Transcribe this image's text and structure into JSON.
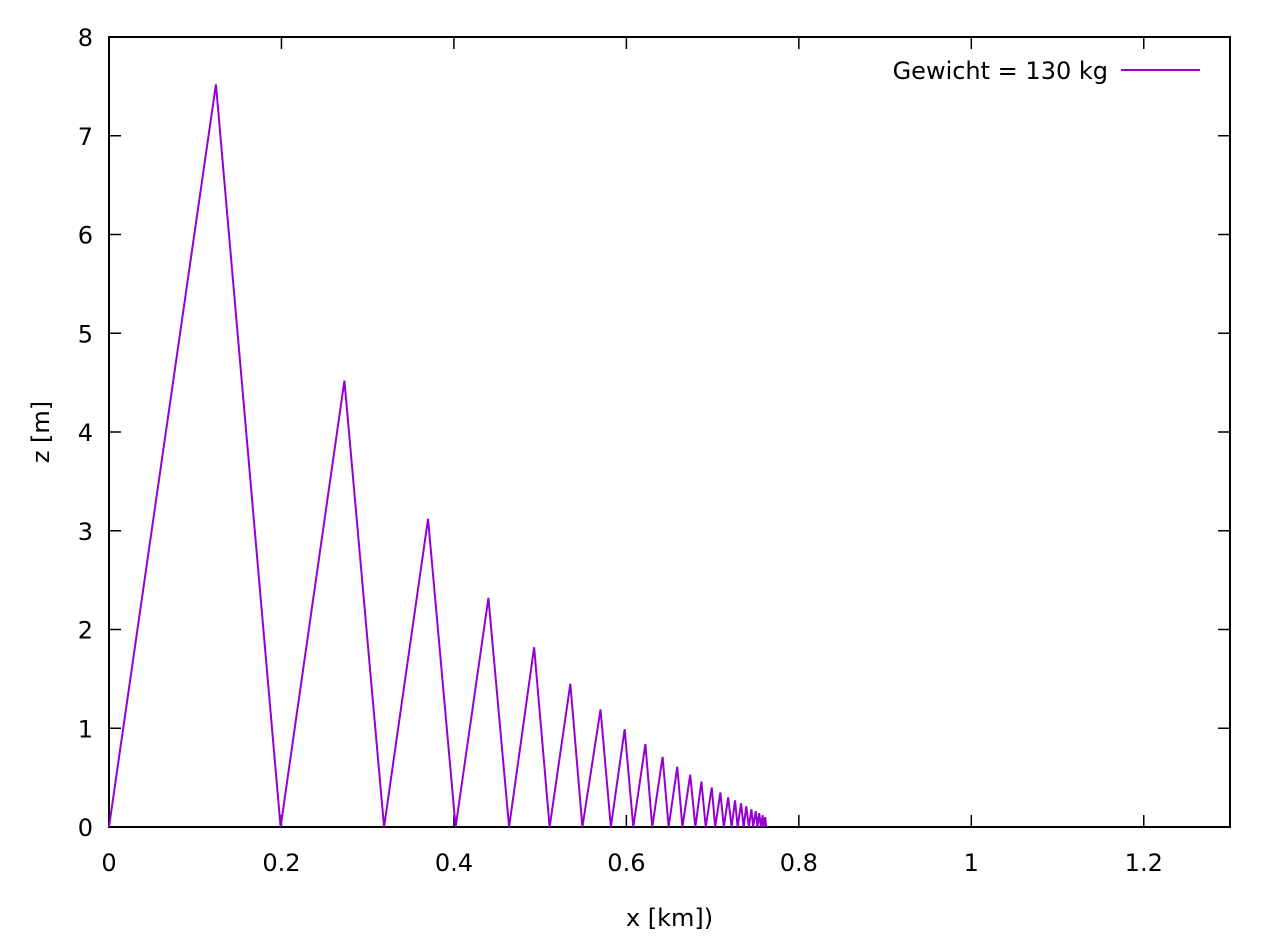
{
  "chart_data": {
    "type": "line",
    "title": "",
    "xlabel": "x [km])",
    "ylabel": "z [m]",
    "xlim": [
      0,
      1.3
    ],
    "ylim": [
      0,
      8
    ],
    "xticks": [
      {
        "value": 0,
        "label": "0"
      },
      {
        "value": 0.2,
        "label": "0.2"
      },
      {
        "value": 0.4,
        "label": "0.4"
      },
      {
        "value": 0.6,
        "label": "0.6"
      },
      {
        "value": 0.8,
        "label": "0.8"
      },
      {
        "value": 1,
        "label": "1"
      },
      {
        "value": 1.2,
        "label": "1.2"
      }
    ],
    "yticks": [
      {
        "value": 0,
        "label": "0"
      },
      {
        "value": 1,
        "label": "1"
      },
      {
        "value": 2,
        "label": "2"
      },
      {
        "value": 3,
        "label": "3"
      },
      {
        "value": 4,
        "label": "4"
      },
      {
        "value": 5,
        "label": "5"
      },
      {
        "value": 6,
        "label": "6"
      },
      {
        "value": 7,
        "label": "7"
      },
      {
        "value": 8,
        "label": "8"
      }
    ],
    "grid": false,
    "legend": "top-right",
    "series": [
      {
        "name": "Gewicht = 130 kg",
        "color": "#9400d3",
        "points": [
          [
            0,
            0
          ],
          [
            0.124,
            7.52
          ],
          [
            0.199,
            0
          ],
          [
            0.273,
            4.52
          ],
          [
            0.319,
            0
          ],
          [
            0.37,
            3.12
          ],
          [
            0.402,
            0
          ],
          [
            0.44,
            2.32
          ],
          [
            0.464,
            0
          ],
          [
            0.493,
            1.82
          ],
          [
            0.511,
            0
          ],
          [
            0.535,
            1.45
          ],
          [
            0.549,
            0
          ],
          [
            0.57,
            1.19
          ],
          [
            0.582,
            0
          ],
          [
            0.598,
            0.99
          ],
          [
            0.608,
            0
          ],
          [
            0.622,
            0.84
          ],
          [
            0.63,
            0
          ],
          [
            0.642,
            0.71
          ],
          [
            0.649,
            0
          ],
          [
            0.659,
            0.61
          ],
          [
            0.665,
            0
          ],
          [
            0.674,
            0.53
          ],
          [
            0.68,
            0
          ],
          [
            0.687,
            0.46
          ],
          [
            0.692,
            0
          ],
          [
            0.699,
            0.4
          ],
          [
            0.703,
            0
          ],
          [
            0.709,
            0.35
          ],
          [
            0.713,
            0
          ],
          [
            0.718,
            0.3
          ],
          [
            0.722,
            0
          ],
          [
            0.726,
            0.27
          ],
          [
            0.729,
            0
          ],
          [
            0.733,
            0.24
          ],
          [
            0.736,
            0
          ],
          [
            0.739,
            0.21
          ],
          [
            0.742,
            0
          ],
          [
            0.745,
            0.18
          ],
          [
            0.747,
            0
          ],
          [
            0.75,
            0.16
          ],
          [
            0.752,
            0
          ],
          [
            0.754,
            0.14
          ],
          [
            0.756,
            0
          ],
          [
            0.758,
            0.12
          ],
          [
            0.759,
            0
          ],
          [
            0.761,
            0.1
          ],
          [
            0.762,
            0
          ]
        ]
      }
    ]
  }
}
